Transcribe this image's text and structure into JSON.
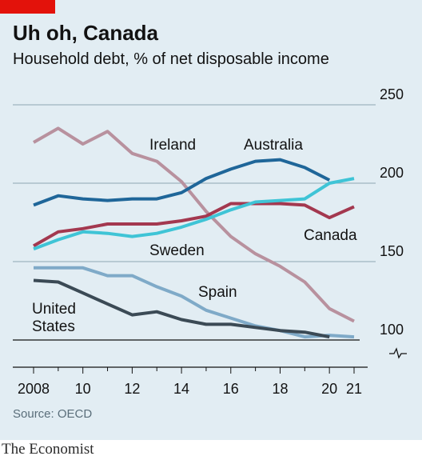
{
  "title": "Uh oh, Canada",
  "subtitle": "Household debt, % of net disposable income",
  "source": "Source: OECD",
  "brand": "The Economist",
  "chart_data": {
    "type": "line",
    "title": "Uh oh, Canada",
    "subtitle": "Household debt, % of net disposable income",
    "x": [
      2008,
      2009,
      2010,
      2011,
      2012,
      2013,
      2014,
      2015,
      2016,
      2017,
      2018,
      2019,
      2020,
      2021
    ],
    "x_tick_values": [
      2008,
      2010,
      2012,
      2014,
      2016,
      2018,
      2020,
      2021
    ],
    "x_tick_labels": [
      "2008",
      "10",
      "12",
      "14",
      "16",
      "18",
      "20",
      "21"
    ],
    "y_tick_values": [
      100,
      150,
      200,
      250
    ],
    "y_tick_labels": [
      "100",
      "150",
      "200",
      "250"
    ],
    "ylim": [
      100,
      250
    ],
    "y_axis_broken": true,
    "y_axis_side": "right",
    "grid": "horizontal",
    "legend": "direct labels on lines",
    "series": [
      {
        "name": "Ireland",
        "color": "#b8919e",
        "values": [
          226,
          235,
          225,
          233,
          219,
          214,
          201,
          182,
          166,
          155,
          147,
          137,
          120,
          112
        ]
      },
      {
        "name": "Australia",
        "color": "#1f6699",
        "values": [
          186,
          192,
          190,
          189,
          190,
          190,
          194,
          203,
          209,
          214,
          215,
          210,
          202,
          null
        ]
      },
      {
        "name": "Canada",
        "color": "#a3384f",
        "values": [
          160,
          169,
          171,
          174,
          174,
          174,
          176,
          179,
          187,
          187,
          187,
          186,
          178,
          185
        ]
      },
      {
        "name": "Sweden",
        "color": "#3fc4d6",
        "values": [
          158,
          164,
          169,
          168,
          166,
          168,
          172,
          177,
          183,
          188,
          189,
          190,
          200,
          203
        ]
      },
      {
        "name": "Spain",
        "color": "#7faac8",
        "values": [
          146,
          146,
          146,
          141,
          141,
          134,
          128,
          119,
          114,
          109,
          106,
          102,
          103,
          102
        ]
      },
      {
        "name": "United States",
        "color": "#3b4a55",
        "values": [
          138,
          137,
          130,
          123,
          116,
          118,
          113,
          110,
          110,
          108,
          106,
          105,
          102,
          null
        ]
      }
    ],
    "label_text": {
      "Ireland": "Ireland",
      "Australia": "Australia",
      "Canada": "Canada",
      "Sweden": "Sweden",
      "Spain": "Spain",
      "United States": [
        "United",
        "States"
      ]
    }
  }
}
